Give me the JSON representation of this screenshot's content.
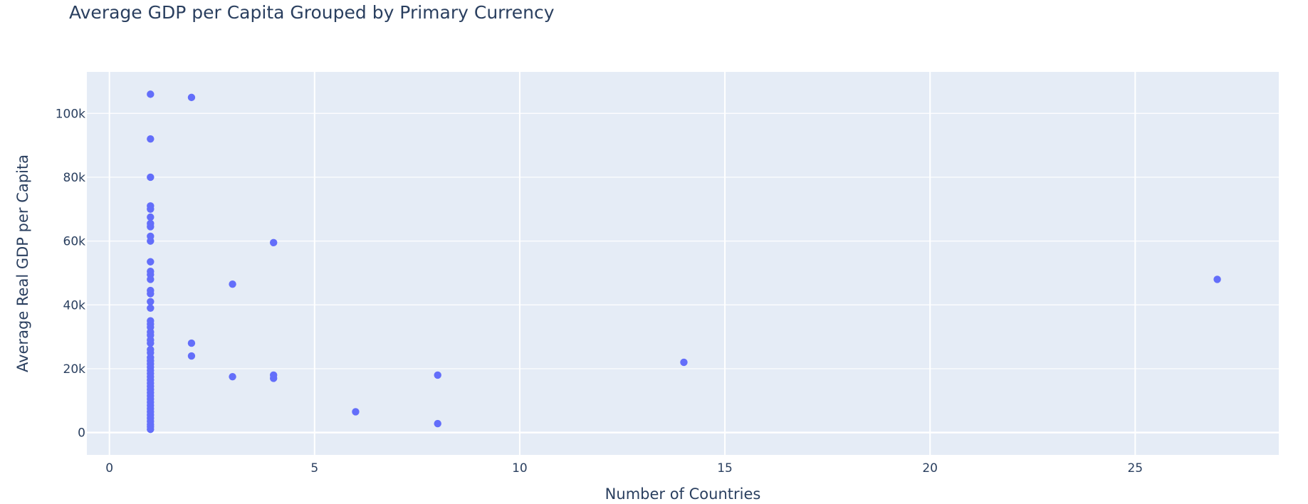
{
  "chart_data": {
    "type": "scatter",
    "title": "Average GDP per Capita Grouped by Primary Currency",
    "xlabel": "Number of Countries",
    "ylabel": "Average Real GDP per Capita",
    "xlim": [
      -0.55,
      28.5
    ],
    "ylim": [
      -7000,
      113000
    ],
    "x_ticks": [
      0,
      5,
      10,
      15,
      20,
      25
    ],
    "x_tick_labels": [
      "0",
      "5",
      "10",
      "15",
      "20",
      "25"
    ],
    "y_ticks": [
      0,
      20000,
      40000,
      60000,
      80000,
      100000
    ],
    "y_tick_labels": [
      "0",
      "20k",
      "40k",
      "60k",
      "80k",
      "100k"
    ],
    "grid": true,
    "colors": {
      "marker": "#636efa",
      "plot_bg": "#e5ecf6",
      "grid": "#ffffff",
      "text": "#2a3f5f"
    },
    "series": [
      {
        "points": [
          {
            "x": 1,
            "y": 106000
          },
          {
            "x": 1,
            "y": 92000
          },
          {
            "x": 1,
            "y": 80000
          },
          {
            "x": 1,
            "y": 71000
          },
          {
            "x": 1,
            "y": 70000
          },
          {
            "x": 1,
            "y": 67500
          },
          {
            "x": 1,
            "y": 65500
          },
          {
            "x": 1,
            "y": 64500
          },
          {
            "x": 1,
            "y": 61500
          },
          {
            "x": 1,
            "y": 60000
          },
          {
            "x": 1,
            "y": 53500
          },
          {
            "x": 1,
            "y": 50500
          },
          {
            "x": 1,
            "y": 49500
          },
          {
            "x": 1,
            "y": 48000
          },
          {
            "x": 1,
            "y": 44500
          },
          {
            "x": 1,
            "y": 43500
          },
          {
            "x": 1,
            "y": 41000
          },
          {
            "x": 1,
            "y": 39000
          },
          {
            "x": 1,
            "y": 35000
          },
          {
            "x": 1,
            "y": 34000
          },
          {
            "x": 1,
            "y": 33000
          },
          {
            "x": 1,
            "y": 31500
          },
          {
            "x": 1,
            "y": 30500
          },
          {
            "x": 1,
            "y": 29000
          },
          {
            "x": 1,
            "y": 28000
          },
          {
            "x": 1,
            "y": 26000
          },
          {
            "x": 1,
            "y": 25000
          },
          {
            "x": 1,
            "y": 23500
          },
          {
            "x": 1,
            "y": 22500
          },
          {
            "x": 1,
            "y": 21500
          },
          {
            "x": 1,
            "y": 20500
          },
          {
            "x": 1,
            "y": 19500
          },
          {
            "x": 1,
            "y": 18500
          },
          {
            "x": 1,
            "y": 17500
          },
          {
            "x": 1,
            "y": 16500
          },
          {
            "x": 1,
            "y": 15500
          },
          {
            "x": 1,
            "y": 14500
          },
          {
            "x": 1,
            "y": 13500
          },
          {
            "x": 1,
            "y": 12500
          },
          {
            "x": 1,
            "y": 11500
          },
          {
            "x": 1,
            "y": 10500
          },
          {
            "x": 1,
            "y": 9500
          },
          {
            "x": 1,
            "y": 8500
          },
          {
            "x": 1,
            "y": 7500
          },
          {
            "x": 1,
            "y": 6500
          },
          {
            "x": 1,
            "y": 5500
          },
          {
            "x": 1,
            "y": 4500
          },
          {
            "x": 1,
            "y": 3500
          },
          {
            "x": 1,
            "y": 2500
          },
          {
            "x": 1,
            "y": 1800
          },
          {
            "x": 1,
            "y": 1000
          },
          {
            "x": 2,
            "y": 105000
          },
          {
            "x": 2,
            "y": 28000
          },
          {
            "x": 2,
            "y": 24000
          },
          {
            "x": 3,
            "y": 46500
          },
          {
            "x": 3,
            "y": 17500
          },
          {
            "x": 4,
            "y": 59500
          },
          {
            "x": 4,
            "y": 18000
          },
          {
            "x": 4,
            "y": 17000
          },
          {
            "x": 6,
            "y": 6500
          },
          {
            "x": 8,
            "y": 18000
          },
          {
            "x": 8,
            "y": 2800
          },
          {
            "x": 14,
            "y": 22000
          },
          {
            "x": 27,
            "y": 48000
          }
        ]
      }
    ]
  }
}
